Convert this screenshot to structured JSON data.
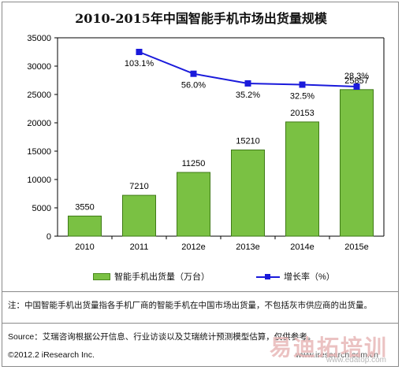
{
  "title": "2010-2015年中国智能手机市场出货量规模",
  "chart_data": {
    "type": "bar",
    "categories": [
      "2010",
      "2011",
      "2012e",
      "2013e",
      "2014e",
      "2015e"
    ],
    "series": [
      {
        "name": "智能手机出货量（万台）",
        "type": "bar",
        "values": [
          3550,
          7210,
          11250,
          15210,
          20153,
          25857
        ],
        "labels": [
          "3550",
          "7210",
          "11250",
          "15210",
          "20153",
          "25857"
        ],
        "color": "#7ac143"
      },
      {
        "name": "增长率（%）",
        "type": "line",
        "values": [
          null,
          103.1,
          56.0,
          35.2,
          32.5,
          28.3
        ],
        "labels": [
          null,
          "103.1%",
          "56.0%",
          "35.2%",
          "32.5%",
          "28.3%"
        ],
        "color": "#1a1adb"
      }
    ],
    "ylim": [
      0,
      35000
    ],
    "yticks": [
      "0",
      "5000",
      "10000",
      "15000",
      "20000",
      "25000",
      "30000",
      "35000"
    ],
    "grid": false,
    "legend": "bottom"
  },
  "legend": {
    "bar_label": "智能手机出货量（万台）",
    "line_label": "增长率（%）"
  },
  "note": "注：中国智能手机出货量指各手机厂商的智能手机在中国市场出货量，不包括灰市供应商的出货量。",
  "source": "Source：艾瑞咨询根据公开信息、行业访谈以及艾瑞统计预测模型估算，仅供参考。",
  "copyright": "©2012.2 iResearch Inc.",
  "website": "www.iresearch.com.cn",
  "watermark": {
    "text": "易迪拓培训",
    "url": "www.edatop.com"
  }
}
